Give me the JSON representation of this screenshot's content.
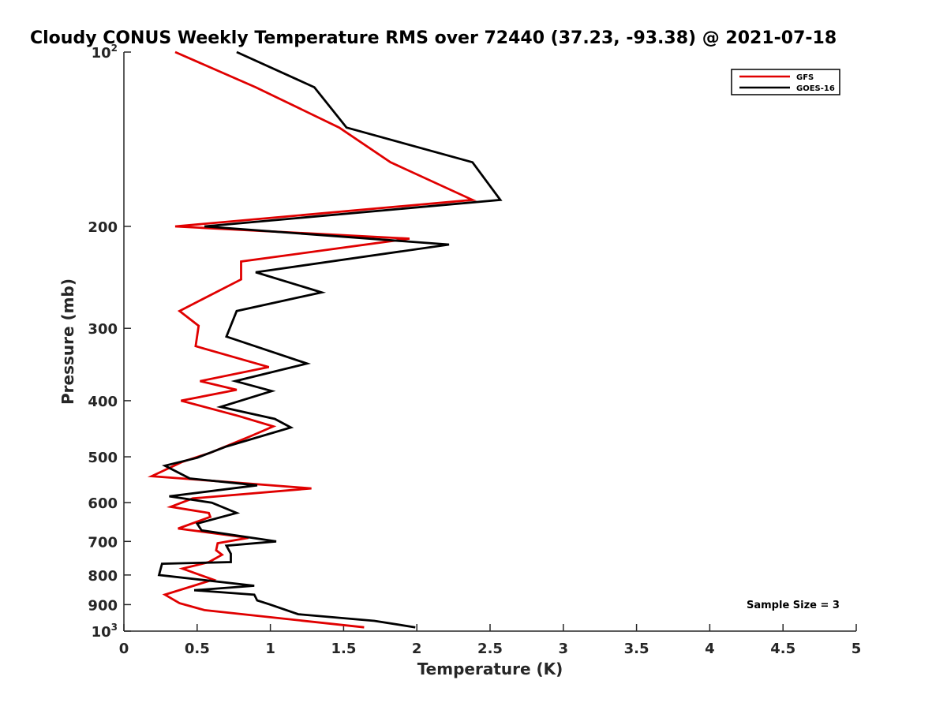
{
  "chart_data": {
    "type": "line",
    "title": "Cloudy CONUS Weekly Temperature RMS over 72440 (37.23, -93.38) @ 2021-07-18",
    "xlabel": "Temperature (K)",
    "ylabel": "Pressure (mb)",
    "xlim": [
      0,
      5
    ],
    "ylim": [
      100,
      1000
    ],
    "y_scale": "log",
    "y_reversed": true,
    "x_ticks": [
      0,
      0.5,
      1,
      1.5,
      2,
      2.5,
      3,
      3.5,
      4,
      4.5,
      5
    ],
    "x_tick_labels": [
      "0",
      "0.5",
      "1",
      "1.5",
      "2",
      "2.5",
      "3",
      "3.5",
      "4",
      "4.5",
      "5"
    ],
    "y_ticks": [
      {
        "value": 100,
        "base": "10",
        "exp": "2"
      },
      {
        "value": 200,
        "label": "200"
      },
      {
        "value": 300,
        "label": "300"
      },
      {
        "value": 400,
        "label": "400"
      },
      {
        "value": 500,
        "label": "500"
      },
      {
        "value": 600,
        "label": "600"
      },
      {
        "value": 700,
        "label": "700"
      },
      {
        "value": 800,
        "label": "800"
      },
      {
        "value": 900,
        "label": "900"
      },
      {
        "value": 1000,
        "base": "10",
        "exp": "3"
      }
    ],
    "grid": false,
    "legend_position": "top-right",
    "annotation": "Sample Size = 3",
    "series": [
      {
        "name": "GFS",
        "color": "#e00000",
        "points": [
          [
            0.35,
            100
          ],
          [
            0.9,
            115
          ],
          [
            1.47,
            135
          ],
          [
            1.82,
            155
          ],
          [
            2.38,
            180
          ],
          [
            0.35,
            200
          ],
          [
            1.95,
            210
          ],
          [
            0.8,
            230
          ],
          [
            0.8,
            247
          ],
          [
            0.38,
            280
          ],
          [
            0.51,
            297
          ],
          [
            0.49,
            322
          ],
          [
            0.99,
            350
          ],
          [
            0.52,
            370
          ],
          [
            0.77,
            383
          ],
          [
            0.39,
            400
          ],
          [
            0.78,
            425
          ],
          [
            1.02,
            443
          ],
          [
            0.87,
            460
          ],
          [
            0.59,
            492
          ],
          [
            0.4,
            510
          ],
          [
            0.19,
            540
          ],
          [
            1.28,
            567
          ],
          [
            0.47,
            590
          ],
          [
            0.32,
            610
          ],
          [
            0.58,
            625
          ],
          [
            0.59,
            635
          ],
          [
            0.37,
            665
          ],
          [
            0.85,
            690
          ],
          [
            0.64,
            705
          ],
          [
            0.63,
            725
          ],
          [
            0.67,
            738
          ],
          [
            0.58,
            760
          ],
          [
            0.4,
            780
          ],
          [
            0.61,
            815
          ],
          [
            0.28,
            865
          ],
          [
            0.38,
            895
          ],
          [
            0.55,
            920
          ],
          [
            1.64,
            985
          ]
        ]
      },
      {
        "name": "GOES-16",
        "color": "#000000",
        "points": [
          [
            0.77,
            100
          ],
          [
            1.3,
            115
          ],
          [
            1.52,
            135
          ],
          [
            2.38,
            155
          ],
          [
            2.57,
            180
          ],
          [
            0.55,
            200
          ],
          [
            2.22,
            215
          ],
          [
            0.9,
            240
          ],
          [
            1.35,
            260
          ],
          [
            0.77,
            280
          ],
          [
            0.7,
            310
          ],
          [
            1.25,
            345
          ],
          [
            0.76,
            370
          ],
          [
            1.01,
            385
          ],
          [
            0.66,
            410
          ],
          [
            1.03,
            430
          ],
          [
            1.14,
            445
          ],
          [
            0.7,
            480
          ],
          [
            0.5,
            502
          ],
          [
            0.28,
            518
          ],
          [
            0.45,
            545
          ],
          [
            0.91,
            560
          ],
          [
            0.31,
            585
          ],
          [
            0.6,
            600
          ],
          [
            0.77,
            625
          ],
          [
            0.5,
            652
          ],
          [
            0.53,
            670
          ],
          [
            1.04,
            700
          ],
          [
            0.7,
            712
          ],
          [
            0.73,
            735
          ],
          [
            0.73,
            760
          ],
          [
            0.26,
            765
          ],
          [
            0.24,
            800
          ],
          [
            0.89,
            835
          ],
          [
            0.48,
            850
          ],
          [
            0.89,
            865
          ],
          [
            0.91,
            885
          ],
          [
            1.0,
            900
          ],
          [
            1.19,
            935
          ],
          [
            1.71,
            960
          ],
          [
            1.99,
            985
          ]
        ]
      }
    ]
  }
}
